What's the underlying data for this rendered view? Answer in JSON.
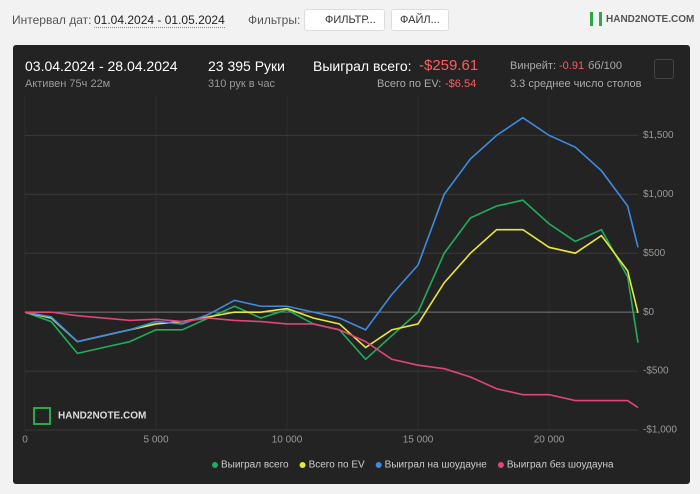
{
  "toolbar": {
    "date_label": "Интервал дат:",
    "date_range": "01.04.2024 - 01.05.2024",
    "filters_label": "Фильтры:",
    "filter_button": "ФИЛЬТР...",
    "file_button": "ФАЙЛ...",
    "logo": "HAND2NOTE.COM"
  },
  "stats": {
    "period": "03.04.2024 - 28.04.2024",
    "active": "Активен 75ч 22м",
    "hands": "23 395 Руки",
    "hands_per_hour": "310 рук в час",
    "won_label": "Выиграл всего:",
    "won_value": "-$259.61",
    "ev_label": "Всего по EV:",
    "ev_value": "-$6.54",
    "winrate_label": "Винрейт:",
    "winrate_value": "-0.91",
    "winrate_unit": "бб/100",
    "tables": "3.3 среднее число столов"
  },
  "chart_data": {
    "type": "line",
    "watermark": "HAND2NOTE.COM",
    "grid": true,
    "x": [
      0,
      1000,
      2000,
      3000,
      4000,
      5000,
      6000,
      7000,
      8000,
      9000,
      10000,
      11000,
      12000,
      13000,
      14000,
      15000,
      16000,
      17000,
      18000,
      19000,
      20000,
      21000,
      22000,
      23000,
      23395
    ],
    "xlim": [
      0,
      23395
    ],
    "xticks": [
      0,
      {
        "value": 5000,
        "label": "5 000"
      },
      {
        "value": 10000,
        "label": "10 000"
      },
      {
        "value": 15000,
        "label": "15 000"
      },
      {
        "value": 20000,
        "label": "20 000"
      }
    ],
    "ylim": [
      -1000,
      1800
    ],
    "yticks": [
      {
        "value": -1000,
        "label": "-$1,000"
      },
      {
        "value": -500,
        "label": "-$500"
      },
      {
        "value": 0,
        "label": "$0"
      },
      {
        "value": 500,
        "label": "$500"
      },
      {
        "value": 1000,
        "label": "$1,000"
      },
      {
        "value": 1500,
        "label": "$1,500"
      }
    ],
    "series": [
      {
        "name": "Выиграл всего",
        "color": "#1fae5b",
        "values": [
          0,
          -80,
          -350,
          -300,
          -250,
          -150,
          -150,
          -50,
          50,
          -50,
          20,
          -100,
          -150,
          -400,
          -200,
          0,
          500,
          800,
          900,
          950,
          750,
          600,
          700,
          300,
          -260
        ]
      },
      {
        "name": "Всего по EV",
        "color": "#e8e83a",
        "values": [
          0,
          -50,
          -250,
          -200,
          -150,
          -100,
          -80,
          -40,
          0,
          0,
          30,
          -50,
          -100,
          -300,
          -150,
          -100,
          250,
          500,
          700,
          700,
          550,
          500,
          650,
          350,
          -7
        ]
      },
      {
        "name": "Выиграл на шоудауне",
        "color": "#3f8be0",
        "values": [
          0,
          -40,
          -250,
          -200,
          -150,
          -80,
          -100,
          -20,
          100,
          50,
          50,
          0,
          -50,
          -150,
          150,
          400,
          1000,
          1300,
          1500,
          1650,
          1500,
          1400,
          1200,
          900,
          550
        ]
      },
      {
        "name": "Выиграл без шоудауна",
        "color": "#e0457b",
        "values": [
          0,
          0,
          -30,
          -50,
          -70,
          -60,
          -80,
          -50,
          -70,
          -80,
          -100,
          -100,
          -150,
          -250,
          -400,
          -450,
          -480,
          -550,
          -650,
          -700,
          -700,
          -750,
          -750,
          -750,
          -810
        ]
      }
    ]
  }
}
